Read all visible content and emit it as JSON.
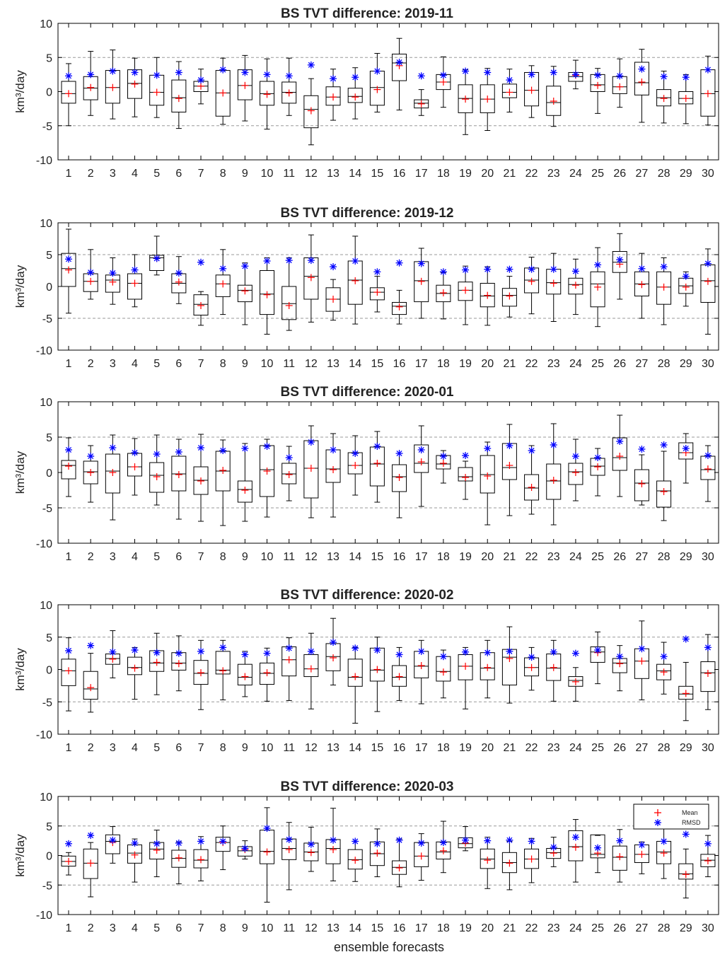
{
  "figure": {
    "xlabel": "ensemble forecasts",
    "legend": {
      "entries": [
        "Mean",
        "RMSD"
      ],
      "placement": "top-right of last panel"
    },
    "colors": {
      "box": "#000000",
      "median": "#000000",
      "mean": "#ff0000",
      "rmsd": "#0000ff",
      "ref_line": "#999999"
    }
  },
  "chart_data": [
    {
      "type": "box",
      "title": "BS TVT difference: 2019-11",
      "xlabel": "",
      "ylabel": "km³/day",
      "ylim": [
        -10,
        10
      ],
      "yticks": [
        -10,
        -5,
        0,
        5,
        10
      ],
      "categories": [
        "1",
        "2",
        "3",
        "4",
        "5",
        "6",
        "7",
        "8",
        "9",
        "10",
        "11",
        "12",
        "13",
        "14",
        "15",
        "16",
        "17",
        "18",
        "19",
        "20",
        "21",
        "22",
        "23",
        "24",
        "25",
        "26",
        "27",
        "28",
        "29",
        "30"
      ],
      "reference_lines": [
        -5,
        5
      ],
      "whisker_low": [
        -5,
        -3.5,
        -4,
        -3.7,
        -3.8,
        -5.4,
        -1.8,
        -4.8,
        -4.3,
        -5.5,
        -3.5,
        -7.8,
        -4.2,
        -4,
        -3,
        -2.7,
        -3.5,
        -2.3,
        -6.3,
        -5.7,
        -3,
        -3.8,
        -5.1,
        0.4,
        -3.2,
        -2.3,
        -4.5,
        -4.6,
        -4.7,
        -4.9
      ],
      "q1": [
        -1.7,
        -1.2,
        -1.7,
        -1,
        -2,
        -3,
        0,
        -3.6,
        -1.2,
        -2,
        -1.7,
        -5.3,
        -2,
        -1.6,
        -2,
        1.6,
        -2.4,
        0.3,
        -3.1,
        -3.1,
        -0.9,
        -2.1,
        -3.5,
        1.5,
        0,
        -0.3,
        -0.5,
        -2.1,
        -1.8,
        -3.6
      ],
      "median": [
        -0.3,
        0.5,
        0.6,
        1.2,
        -0.1,
        -0.9,
        0.8,
        -0.2,
        0.9,
        -0.3,
        -0.1,
        -2.6,
        -0.8,
        -0.7,
        0.6,
        4.2,
        -1.7,
        1.4,
        -1,
        -1.1,
        -0.1,
        0.2,
        -1.6,
        2.2,
        1,
        0.7,
        1.3,
        -0.9,
        -1,
        -0.3
      ],
      "q3": [
        1.5,
        2.2,
        3.1,
        3.2,
        2.4,
        1.7,
        1.5,
        3.1,
        3.2,
        1.5,
        1.4,
        -0.6,
        0.7,
        0.5,
        3,
        5.5,
        -1.2,
        2.5,
        1,
        1,
        1.1,
        2.8,
        0.8,
        2.8,
        2.5,
        2.2,
        4.3,
        0.3,
        0,
        3.2
      ],
      "whisker_high": [
        4.1,
        5.9,
        6.1,
        4.9,
        5,
        4.4,
        3.3,
        4.9,
        5.3,
        4.8,
        4.9,
        1.9,
        3.3,
        3.5,
        5.6,
        7.8,
        0.3,
        5.1,
        3.2,
        3.4,
        3.3,
        3.8,
        3.7,
        4.6,
        3.4,
        4.8,
        6.2,
        3,
        2.5,
        5.2
      ],
      "mean": [
        -0.3,
        0.6,
        0.6,
        1.1,
        -0.1,
        -1,
        0.8,
        -0.2,
        0.9,
        -0.4,
        -0.2,
        -2.8,
        -0.8,
        -0.8,
        0.3,
        3.8,
        -1.8,
        1.4,
        -1.1,
        -1.1,
        -0.1,
        0.2,
        -1.4,
        2.4,
        0.9,
        0.7,
        1.4,
        -1,
        -1,
        -0.3
      ],
      "rmsd": [
        2.3,
        2.5,
        3,
        2.8,
        2.4,
        2.8,
        1.7,
        3.2,
        2.8,
        2.5,
        2.3,
        3.9,
        1.9,
        2.1,
        3,
        4.3,
        2.3,
        2.4,
        3,
        2.8,
        1.7,
        2.5,
        2.8,
        2.5,
        2.4,
        2.3,
        3.3,
        2.2,
        2.1,
        3.2
      ]
    },
    {
      "type": "box",
      "title": "BS TVT difference: 2019-12",
      "xlabel": "",
      "ylabel": "km³/day",
      "ylim": [
        -10,
        10
      ],
      "yticks": [
        -10,
        -5,
        0,
        5,
        10
      ],
      "categories": [
        "1",
        "2",
        "3",
        "4",
        "5",
        "6",
        "7",
        "8",
        "9",
        "10",
        "11",
        "12",
        "13",
        "14",
        "15",
        "16",
        "17",
        "18",
        "19",
        "20",
        "21",
        "22",
        "23",
        "24",
        "25",
        "26",
        "27",
        "28",
        "29",
        "30"
      ],
      "reference_lines": [
        -5,
        5
      ],
      "whisker_low": [
        -4.2,
        -2,
        -2.8,
        -3.2,
        1.8,
        -2.7,
        -6.1,
        -4.4,
        -6,
        -7.5,
        -6.9,
        -5.6,
        -5.3,
        -5.9,
        -4,
        -5.9,
        -5,
        -5.1,
        -6,
        -6.1,
        -4.8,
        -4.3,
        -5.5,
        -4.4,
        -6.3,
        -2,
        -5,
        -6,
        -3.1,
        -7.5
      ],
      "q1": [
        0,
        -0.8,
        -0.9,
        -2,
        2.5,
        -1,
        -4.5,
        -1.6,
        -2.4,
        -4.4,
        -5.2,
        -2,
        -3.9,
        -2.8,
        -2.1,
        -4.4,
        -2.4,
        -2.4,
        -2.2,
        -3.2,
        -3.1,
        -1,
        -1.2,
        -1.2,
        -3.2,
        2.2,
        -1.5,
        -2.8,
        -1.1,
        -2.5
      ],
      "median": [
        2.8,
        0.8,
        1,
        0.5,
        4.5,
        0.5,
        -2.8,
        0.4,
        -0.6,
        -1.2,
        -2.7,
        1.6,
        -2,
        1,
        -0.9,
        -3.1,
        0.9,
        -1.1,
        -0.6,
        -1.5,
        -1.4,
        1,
        0.6,
        0.3,
        0.4,
        3.8,
        0.4,
        -0.1,
        0.1,
        0.9
      ],
      "q3": [
        5.2,
        2,
        1.8,
        2,
        4.9,
        2,
        -1.3,
        1.8,
        0.2,
        2.5,
        0,
        4.5,
        -0.2,
        4,
        -0.2,
        -2.5,
        3.9,
        0.2,
        0.7,
        0.5,
        -0.3,
        2.9,
        2.7,
        1.3,
        2.3,
        5.5,
        2.3,
        2.3,
        1.3,
        3.4
      ],
      "whisker_high": [
        9,
        5.8,
        4.5,
        5,
        7.9,
        4.7,
        -0.8,
        5.8,
        3.7,
        4.5,
        4.5,
        8.1,
        1.1,
        7.9,
        1.6,
        -0.6,
        6,
        2.2,
        3.2,
        3.1,
        1.6,
        4.6,
        5.2,
        4.3,
        6.1,
        8.3,
        5.2,
        4.5,
        2.3,
        5.9
      ],
      "mean": [
        2.6,
        0.8,
        0.7,
        0.5,
        4.4,
        0.7,
        -3,
        0.4,
        -0.7,
        -1.3,
        -3,
        1.4,
        -2,
        0.9,
        -0.9,
        -3.2,
        0.8,
        -1,
        -0.6,
        -1.4,
        -1.5,
        0.8,
        0.5,
        0.2,
        -0.1,
        3.5,
        0.3,
        -0.1,
        -0.1,
        0.8
      ],
      "rmsd": [
        4.3,
        2.2,
        2.1,
        2.6,
        4.4,
        2.1,
        3.8,
        2.8,
        3.2,
        4,
        4.1,
        4.1,
        3.1,
        4,
        2.3,
        3.7,
        3.6,
        2.3,
        2.6,
        2.7,
        2.7,
        2.7,
        2.7,
        2.4,
        3.4,
        4.2,
        2.8,
        3.1,
        1.6,
        3.6
      ]
    },
    {
      "type": "box",
      "title": "BS TVT difference: 2020-01",
      "xlabel": "",
      "ylabel": "km³/day",
      "ylim": [
        -10,
        10
      ],
      "yticks": [
        -10,
        -5,
        0,
        5,
        10
      ],
      "categories": [
        "1",
        "2",
        "3",
        "4",
        "5",
        "6",
        "7",
        "8",
        "9",
        "10",
        "11",
        "12",
        "13",
        "14",
        "15",
        "16",
        "17",
        "18",
        "19",
        "20",
        "21",
        "22",
        "23",
        "24",
        "25",
        "26",
        "27",
        "28",
        "29",
        "30"
      ],
      "reference_lines": [
        -5,
        5
      ],
      "whisker_low": [
        -3.4,
        -4.2,
        -6.7,
        -3.2,
        -4.6,
        -6.6,
        -6.9,
        -7.5,
        -6.9,
        -6.3,
        -4,
        -6.4,
        -6.3,
        -3.2,
        -4.2,
        -6.4,
        -4.8,
        -1.5,
        -3.8,
        -7.4,
        -6.1,
        -5.9,
        -7.4,
        -4,
        -3.3,
        -3.4,
        -4.6,
        -6.8,
        -1.5,
        -4.1
      ],
      "q1": [
        -0.9,
        -1.6,
        -2.9,
        -0.5,
        -2.8,
        -2.6,
        -3.1,
        -2.6,
        -4.2,
        -3.4,
        -1.6,
        -3.6,
        -1.4,
        -0.2,
        -1.9,
        -2.7,
        0,
        0.5,
        -1.2,
        -2.9,
        -1,
        -3.9,
        -3.8,
        -1.7,
        -0.4,
        0.3,
        -4,
        -4.9,
        1.9,
        -1
      ],
      "median": [
        1,
        0.1,
        0.2,
        0.8,
        -0.4,
        -0.2,
        -1.1,
        0.2,
        -2.4,
        0.4,
        -0.2,
        0.6,
        0.5,
        1,
        1.2,
        -0.6,
        1.3,
        1.2,
        -0.6,
        -0.3,
        0.7,
        -2.2,
        -1.2,
        0.1,
        0.9,
        2.1,
        -1.5,
        -2.6,
        2.8,
        0.4
      ],
      "q3": [
        1.7,
        1.6,
        2.6,
        2.7,
        1.4,
        2.3,
        0.8,
        3,
        -1.2,
        3.8,
        1.3,
        4.5,
        3.2,
        2.8,
        3.6,
        1.1,
        3.9,
        2.4,
        0.7,
        2.4,
        4.1,
        -0.3,
        1.2,
        1.3,
        2,
        4.9,
        0.4,
        -1.2,
        4.2,
        2.3
      ],
      "whisker_high": [
        4.9,
        3.8,
        5.3,
        4.8,
        5.3,
        4.7,
        5.4,
        4.6,
        4.1,
        4.7,
        3.7,
        6.6,
        5.5,
        5.2,
        5.8,
        2.7,
        6.6,
        3.1,
        1.6,
        4.3,
        6.8,
        3.8,
        6.9,
        4.7,
        3.4,
        8.1,
        2.5,
        3,
        5.5,
        3.8
      ],
      "mean": [
        0.9,
        0,
        0,
        0.8,
        -0.6,
        -0.3,
        -1.2,
        0.3,
        -2.5,
        0.2,
        -0.3,
        0.6,
        0.4,
        1,
        1.3,
        -0.7,
        1.5,
        1.3,
        -0.7,
        -0.5,
        1,
        -2.1,
        -1.1,
        0,
        0.8,
        2.3,
        -1.6,
        -2.7,
        2.8,
        0.5
      ],
      "rmsd": [
        3.2,
        2.3,
        3.5,
        2.8,
        2.6,
        2.9,
        3.5,
        3.1,
        3.4,
        3.7,
        2.1,
        4.3,
        3.2,
        2.7,
        3.7,
        2.7,
        3.2,
        2.3,
        2.4,
        3.4,
        3.8,
        3.1,
        3.9,
        2.3,
        2.1,
        4.4,
        3.3,
        3.9,
        3.4,
        2.4
      ]
    },
    {
      "type": "box",
      "title": "BS TVT difference: 2020-02",
      "xlabel": "",
      "ylabel": "km³/day",
      "ylim": [
        -10,
        10
      ],
      "yticks": [
        -10,
        -5,
        0,
        5,
        10
      ],
      "categories": [
        "1",
        "2",
        "3",
        "4",
        "5",
        "6",
        "7",
        "8",
        "9",
        "10",
        "11",
        "12",
        "13",
        "14",
        "15",
        "16",
        "17",
        "18",
        "19",
        "20",
        "21",
        "22",
        "23",
        "24",
        "25",
        "26",
        "27",
        "28",
        "29",
        "30"
      ],
      "reference_lines": [
        -5,
        5
      ],
      "whisker_low": [
        -6.4,
        -6.6,
        -1.3,
        -4.6,
        -3.9,
        -3.3,
        -6.2,
        -4.7,
        -4.2,
        -4.9,
        -4.8,
        -6.1,
        -2.4,
        -8.3,
        -6.5,
        -4.8,
        -5.3,
        -4.4,
        -6.1,
        -4.4,
        -5.2,
        -3.2,
        -4.9,
        -4.9,
        -2.2,
        -3.3,
        -4.7,
        -3.8,
        -7.9,
        -6.2
      ],
      "q1": [
        -2.5,
        -4.6,
        0.8,
        -0.8,
        -0.3,
        -0.1,
        -2.3,
        -0.7,
        -2.4,
        -2.3,
        -1,
        -1.1,
        -0.2,
        -2.6,
        -1.8,
        -2.6,
        -1.3,
        -1.8,
        -1.6,
        -1.6,
        -2.4,
        -1,
        -1.7,
        -2.6,
        1.1,
        -0.5,
        -1.4,
        -1.6,
        -4.6,
        -3.4
      ],
      "median": [
        -0.2,
        -3,
        1.7,
        0.3,
        1,
        1,
        -0.6,
        -0.1,
        -1.2,
        -0.6,
        1.5,
        0.1,
        2,
        -1.2,
        -0.1,
        -1.2,
        0.5,
        -0.3,
        0.5,
        0.2,
        1.9,
        0.3,
        0.2,
        -1.7,
        2.7,
        1,
        1.3,
        -0.2,
        -3.8,
        -0.5
      ],
      "q3": [
        1.6,
        -0.3,
        2.4,
        1.9,
        2.9,
        2.6,
        1.4,
        2.8,
        0.8,
        1,
        3.5,
        2.3,
        4,
        1.6,
        3.3,
        0.6,
        2.8,
        2,
        2.3,
        2.6,
        3.1,
        1.8,
        2.4,
        -1.1,
        3.5,
        1.7,
        3.2,
        0.8,
        -2.6,
        1.2
      ],
      "whisker_high": [
        4.9,
        2.5,
        6,
        3.4,
        5.6,
        5.2,
        4.5,
        4.5,
        2.8,
        3.3,
        4.9,
        5.6,
        7.9,
        3.4,
        5,
        3.4,
        4.5,
        3,
        3.4,
        4.5,
        6.6,
        3.4,
        4.5,
        0.3,
        5.8,
        3.7,
        7.5,
        4.2,
        1.1,
        5.4
      ],
      "mean": [
        -0.2,
        -2.8,
        1.6,
        0.2,
        1.1,
        0.9,
        -0.5,
        -0.2,
        -1.1,
        -0.5,
        1.5,
        0.1,
        1.8,
        -1.1,
        0,
        -1.1,
        0.6,
        -0.4,
        0.5,
        0.3,
        1.7,
        0.3,
        0.3,
        -1.9,
        2.6,
        0.9,
        1.3,
        -0.4,
        -3.7,
        -0.6
      ],
      "rmsd": [
        2.9,
        3.7,
        2.7,
        3,
        2.6,
        2.5,
        2.8,
        3.4,
        2.3,
        2.5,
        3.3,
        2.8,
        4.2,
        3.3,
        3,
        2.3,
        2.8,
        2,
        2.7,
        2.6,
        2.8,
        1.9,
        2.7,
        2.5,
        3,
        2,
        3.2,
        2,
        4.7,
        3.4
      ]
    },
    {
      "type": "box",
      "title": "BS TVT difference: 2020-03",
      "xlabel": "ensemble forecasts",
      "ylabel": "km³/day",
      "ylim": [
        -10,
        10
      ],
      "yticks": [
        -10,
        -5,
        0,
        5,
        10
      ],
      "categories": [
        "1",
        "2",
        "3",
        "4",
        "5",
        "6",
        "7",
        "8",
        "9",
        "10",
        "11",
        "12",
        "13",
        "14",
        "15",
        "16",
        "17",
        "18",
        "19",
        "20",
        "21",
        "22",
        "23",
        "24",
        "25",
        "26",
        "27",
        "28",
        "29",
        "30"
      ],
      "reference_lines": [
        -5,
        5
      ],
      "whisker_low": [
        -3.3,
        -7,
        -1.3,
        -4.5,
        -3.6,
        -4.8,
        -4.3,
        -2.4,
        -0.6,
        -7.9,
        -5.8,
        -2.7,
        -4.3,
        -4.4,
        -3.6,
        -5.3,
        -4.2,
        -2.9,
        0.8,
        -5.6,
        -5.8,
        -4.6,
        -1.9,
        -4.5,
        -2.9,
        -4.5,
        -3.1,
        -3.9,
        -7.2,
        -3.6
      ],
      "q1": [
        -1.8,
        -3.9,
        0.3,
        -1.3,
        -0.6,
        -2,
        -2.1,
        0.7,
        -0.1,
        -1.4,
        -0.7,
        -0.9,
        -1.4,
        -2.3,
        -1.7,
        -3.2,
        -1.9,
        -0.6,
        1.3,
        -2.2,
        -2.9,
        -2.2,
        -0.5,
        -0.9,
        -0.4,
        -2.5,
        -1.2,
        -1.4,
        -4,
        -1.9
      ],
      "median": [
        -1,
        -1.3,
        2.4,
        0.4,
        1.1,
        -0.5,
        -0.8,
        2.2,
        0.8,
        0.7,
        1.2,
        0.6,
        1.2,
        -0.7,
        0.3,
        -2,
        -0.1,
        0.6,
        2,
        -0.6,
        -1.2,
        -0.6,
        0.5,
        1.5,
        0.2,
        -0.3,
        0.2,
        0.6,
        -3.1,
        -0.8
      ],
      "q3": [
        -0.1,
        1.1,
        3.5,
        1.8,
        2.2,
        0.9,
        1,
        3.1,
        1.5,
        4.3,
        2.8,
        2.1,
        2.7,
        1,
        2.3,
        -0.9,
        2.2,
        2.3,
        3,
        1.1,
        0.5,
        1.1,
        1.2,
        4.2,
        3.5,
        1.6,
        1.8,
        2.4,
        -1.4,
        0.2
      ],
      "whisker_high": [
        0.5,
        2.2,
        4.9,
        2.8,
        4.3,
        2.3,
        3.2,
        5,
        2.5,
        8.1,
        5.6,
        4.8,
        8,
        2.4,
        4.5,
        2.8,
        3.7,
        5.8,
        4.9,
        3.1,
        2.4,
        2.9,
        3.1,
        6.1,
        3.4,
        4.4,
        2.3,
        4.7,
        1.1,
        3.4
      ],
      "mean": [
        -1,
        -1.3,
        2.2,
        0.1,
        0.9,
        -0.4,
        -0.7,
        2.2,
        1,
        0.6,
        1,
        0.5,
        1,
        -0.8,
        0.4,
        -2.1,
        -0.1,
        0.8,
        2.1,
        -0.8,
        -1.3,
        -0.6,
        0.4,
        1.4,
        0.4,
        -0.2,
        0.2,
        0.4,
        -3.2,
        -0.9
      ],
      "rmsd": [
        2,
        3.4,
        2.6,
        2.1,
        2,
        2.1,
        2.4,
        2.4,
        1.2,
        4.6,
        2.7,
        1.9,
        2.6,
        2.4,
        2,
        2.6,
        2.1,
        2.2,
        2.6,
        2.5,
        2.6,
        2.4,
        1.4,
        3.1,
        1.3,
        2.5,
        1.8,
        2.4,
        3.6,
        2
      ]
    }
  ]
}
